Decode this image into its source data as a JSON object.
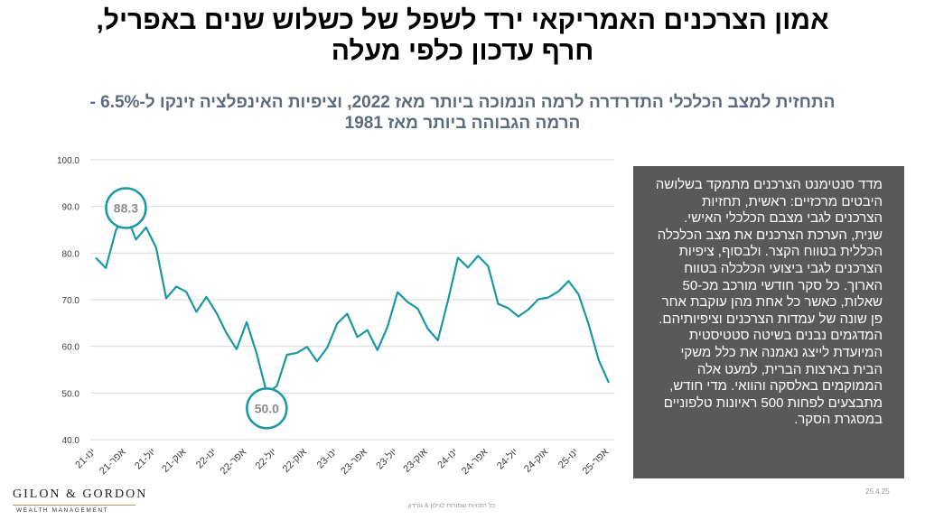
{
  "title": {
    "line1": "אמון הצרכנים האמריקאי ירד לשפל של כשלוש שנים באפריל,",
    "line2": "חרף עדכון כלפי מעלה"
  },
  "subtitle": {
    "line1": "התחזית למצב הכלכלי התדרדרה לרמה הנמוכה ביותר מאז 2022, וציפיות האינפלציה זינקו ל-6.5% -",
    "line2": "הרמה הגבוהה ביותר מאז 1981"
  },
  "description": {
    "lines": [
      "מדד סנטימנט הצרכנים מתמקד בשלושה",
      "היבטים מרכזיים: ראשית, תחזיות",
      "הצרכנים לגבי מצבם הכלכלי האישי.",
      "שנית, הערכת הצרכנים את מצב הכלכלה",
      "הכללית בטווח הקצר. ולבסוף, ציפיות",
      "הצרכנים לגבי ביצועי הכלכלה בטווח",
      "הארוך. כל סקר חודשי מורכב מכ-50",
      "שאלות, כאשר כל אחת מהן עוקבת אחר",
      "פן שונה של עמדות הצרכנים וציפיותיהם.",
      "המדגמים נבנים בשיטה סטטיסטית",
      "המיועדת לייצג נאמנה את כלל משקי",
      "הבית בארצות הברית, למעט אלה",
      "הממוקמים באלסקה והוואי. מדי חודש,",
      "מתבצעים לפחות 500 ראיונות טלפוניים",
      "במסגרת הסקר."
    ]
  },
  "logo": {
    "main": "GILON & GORDON",
    "sub": "WEALTH MANAGEMENT"
  },
  "footer": "כל הזכויות שמורות לגילון & גורדון",
  "date": "25.4.25",
  "colors": {
    "line": "#1b98a3",
    "grid": "#d9d9d9",
    "callout_stroke": "#1b98a3",
    "callout_text": "#8c8c8c",
    "textbox_bg": "#595959",
    "subtitle": "#5b6b7e"
  },
  "chart_data": {
    "type": "line",
    "title": "",
    "xlabel": "",
    "ylabel": "",
    "ylim": [
      40,
      100
    ],
    "yticks": [
      "40.0",
      "50.0",
      "60.0",
      "70.0",
      "80.0",
      "90.0",
      "100.0"
    ],
    "grid": true,
    "x_tick_labels": [
      "ינו-21",
      "אפר-21",
      "יול-21",
      "אוק-21",
      "ינו-22",
      "אפר-22",
      "יול-22",
      "אוק-22",
      "ינו-23",
      "אפר-23",
      "יול-23",
      "אוק-23",
      "ינו-24",
      "אפר-24",
      "יול-24",
      "אוק-24",
      "ינו-25",
      "אפר-25"
    ],
    "x": [
      "ינו-21",
      "פבר-21",
      "מרץ-21",
      "אפר-21",
      "מאי-21",
      "יונ-21",
      "יול-21",
      "אוג-21",
      "ספט-21",
      "אוק-21",
      "נוב-21",
      "דצמ-21",
      "ינו-22",
      "פבר-22",
      "מרץ-22",
      "אפר-22",
      "מאי-22",
      "יונ-22",
      "יול-22",
      "אוג-22",
      "ספט-22",
      "אוק-22",
      "נוב-22",
      "דצמ-22",
      "ינו-23",
      "פבר-23",
      "מרץ-23",
      "אפר-23",
      "מאי-23",
      "יונ-23",
      "יול-23",
      "אוג-23",
      "ספט-23",
      "אוק-23",
      "נוב-23",
      "דצמ-23",
      "ינו-24",
      "פבר-24",
      "מרץ-24",
      "אפר-24",
      "מאי-24",
      "יונ-24",
      "יול-24",
      "אוג-24",
      "ספט-24",
      "אוק-24",
      "נוב-24",
      "דצמ-24",
      "ינו-25",
      "פבר-25",
      "מרץ-25",
      "אפר-25"
    ],
    "series": [
      {
        "name": "",
        "values": [
          79.0,
          76.8,
          84.9,
          88.3,
          82.9,
          85.5,
          81.2,
          70.3,
          72.8,
          71.7,
          67.4,
          70.6,
          67.2,
          62.8,
          59.4,
          65.2,
          58.4,
          50.0,
          51.5,
          58.2,
          58.6,
          59.9,
          56.8,
          59.7,
          64.9,
          67.0,
          62.0,
          63.5,
          59.2,
          64.2,
          71.6,
          69.5,
          68.1,
          63.8,
          61.3,
          69.7,
          79.0,
          76.9,
          79.4,
          77.2,
          69.1,
          68.2,
          66.4,
          67.9,
          70.1,
          70.5,
          71.8,
          74.0,
          71.1,
          64.7,
          57.0,
          52.2
        ],
        "annotation_points": [
          {
            "label": "88.3",
            "index": 3
          },
          {
            "label": "50.0",
            "index": 17
          }
        ]
      }
    ]
  }
}
